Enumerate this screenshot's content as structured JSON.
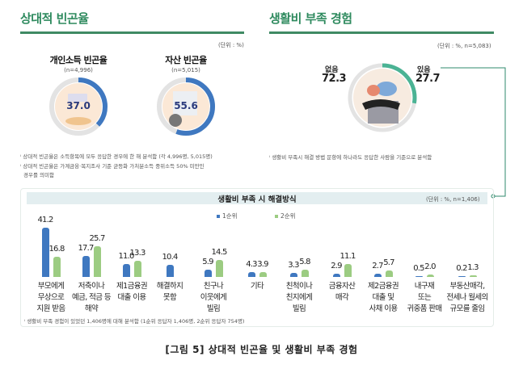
{
  "left": {
    "title": "상대적 빈곤율",
    "unit": "(단위 : %)",
    "donuts": [
      {
        "label": "개인소득 빈곤율",
        "n": "(n=4,996)",
        "value": "37.0",
        "pct": 37.0
      },
      {
        "label": "자산 빈곤율",
        "n": "(n=5,015)",
        "value": "55.6",
        "pct": 55.6
      }
    ],
    "notes": [
      "상대적 빈곤율은 소득항목에 모두 응답한 경우에 한 해 분석함 (각 4,996명, 5,015명)",
      "상대적 빈곤율은 가계금융·복지조사 기준 균등화 가처분소득 중위소득 50% 미만인",
      "경우를 의미함"
    ]
  },
  "right": {
    "title": "생활비 부족 경험",
    "unit": "(단위 : %, n=5,083)",
    "no_label": "없음",
    "no_value": "72.3",
    "yes_label": "있음",
    "yes_value": "27.7",
    "yes_pct": 27.7,
    "note": "생활비 부족시 해결 방법 문항에 하나라도 응답한 사람을 기준으로 분석함"
  },
  "colors": {
    "green_title": "#2e8a5e",
    "blue": "#3f78c0",
    "green": "#9ccc82",
    "teal": "#4bb394",
    "ring": "#e3e3e3"
  },
  "chart_data": {
    "type": "bar",
    "title": "생활비 부족 시 해결방식",
    "unit": "(단위 : %, n=1,406)",
    "legend": [
      "1순위",
      "2순위"
    ],
    "categories": [
      "부모에게\n무상으로\n지원 받음",
      "저축이나\n예금, 적금 등\n해약",
      "제1금융권\n대출 이용",
      "해결하지\n못함",
      "친구나\n이웃에게\n빌림",
      "기타",
      "친척이나\n친지에게\n빌림",
      "금융자산\n매각",
      "제2금융권\n대출 및\n사채 이용",
      "내구재\n또는\n귀중품 판매",
      "부동산매각,\n전세나 월세의\n규모를 줄임"
    ],
    "series": [
      {
        "name": "1순위",
        "values": [
          41.2,
          17.7,
          11.0,
          10.4,
          5.9,
          4.3,
          3.3,
          2.9,
          2.7,
          0.5,
          0.2
        ],
        "labels": [
          "41.2",
          "17.7",
          "11.0",
          "10.4",
          "5.9",
          "4.3",
          "3.3",
          "2.9",
          "2.7",
          "0.5",
          "0.2"
        ]
      },
      {
        "name": "2순위",
        "values": [
          16.8,
          25.7,
          13.3,
          null,
          14.5,
          3.9,
          5.8,
          11.1,
          5.7,
          2.0,
          1.3
        ],
        "labels": [
          "16.8",
          "25.7",
          "13.3",
          "",
          "14.5",
          "3.9",
          "5.8",
          "11.1",
          "5.7",
          "2.0",
          "1.3"
        ]
      }
    ],
    "footnote": "생활비 부족 경험이 있었던 1,406명에 대해 분석함 (1순위 응답자 1,406명, 2순위 응답자 754명)"
  },
  "caption": "[그림 5] 상대적 빈곤율 및 생활비 부족 경험"
}
